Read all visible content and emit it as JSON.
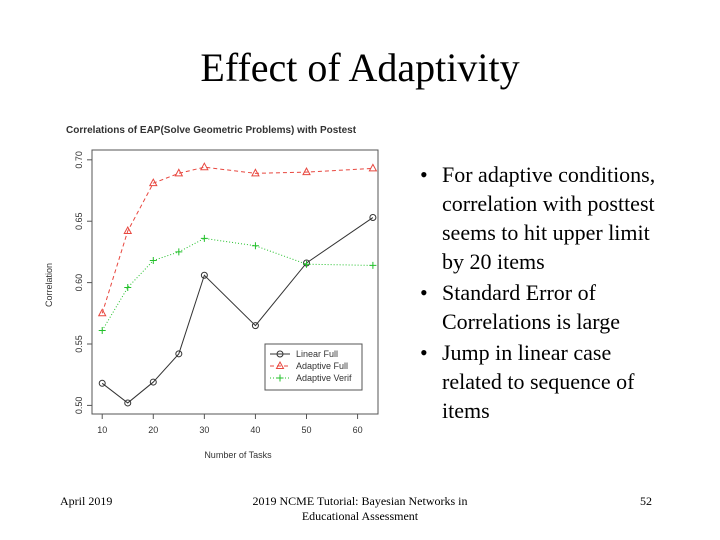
{
  "title": "Effect of Adaptivity",
  "chart_data": {
    "type": "line",
    "title": "Correlations of EAP(Solve Geometric Problems) with Postest",
    "xlabel": "Number of Tasks",
    "ylabel": "Correlation",
    "x": [
      10,
      15,
      20,
      25,
      30,
      40,
      50,
      63
    ],
    "series": [
      {
        "name": "Linear Full",
        "color": "#333333",
        "marker": "circle",
        "linestyle": "solid",
        "values": [
          0.518,
          0.502,
          0.519,
          0.542,
          0.606,
          0.565,
          0.616,
          0.653
        ]
      },
      {
        "name": "Adaptive Full",
        "color": "#e8473f",
        "marker": "triangle",
        "linestyle": "dashed",
        "values": [
          0.575,
          0.642,
          0.681,
          0.689,
          0.694,
          0.689,
          0.69,
          0.693
        ]
      },
      {
        "name": "Adaptive Verif",
        "color": "#22c02a",
        "marker": "plus",
        "linestyle": "dotted",
        "values": [
          0.561,
          0.596,
          0.618,
          0.625,
          0.636,
          0.63,
          0.615,
          0.614
        ]
      }
    ],
    "xlim": [
      8,
      64
    ],
    "xticks": [
      10,
      20,
      30,
      40,
      50,
      60
    ],
    "ylim": [
      0.493,
      0.708
    ],
    "yticks": [
      {
        "value": 0.5,
        "label": "0.50"
      },
      0.55,
      {
        "value": 0.6,
        "label": "0.60"
      },
      0.65,
      {
        "value": 0.7,
        "label": "0.70"
      }
    ],
    "grid": false,
    "legend": "bottomright"
  },
  "bullets": [
    "For adaptive conditions, correlation with posttest seems to hit upper limit by 20 items",
    "Standard Error of Correlations is large",
    "Jump in linear case related to sequence of items"
  ],
  "footer": {
    "date": "April 2019",
    "center": "2019 NCME Tutorial: Bayesian Networks in Educational Assessment",
    "page": "52"
  }
}
